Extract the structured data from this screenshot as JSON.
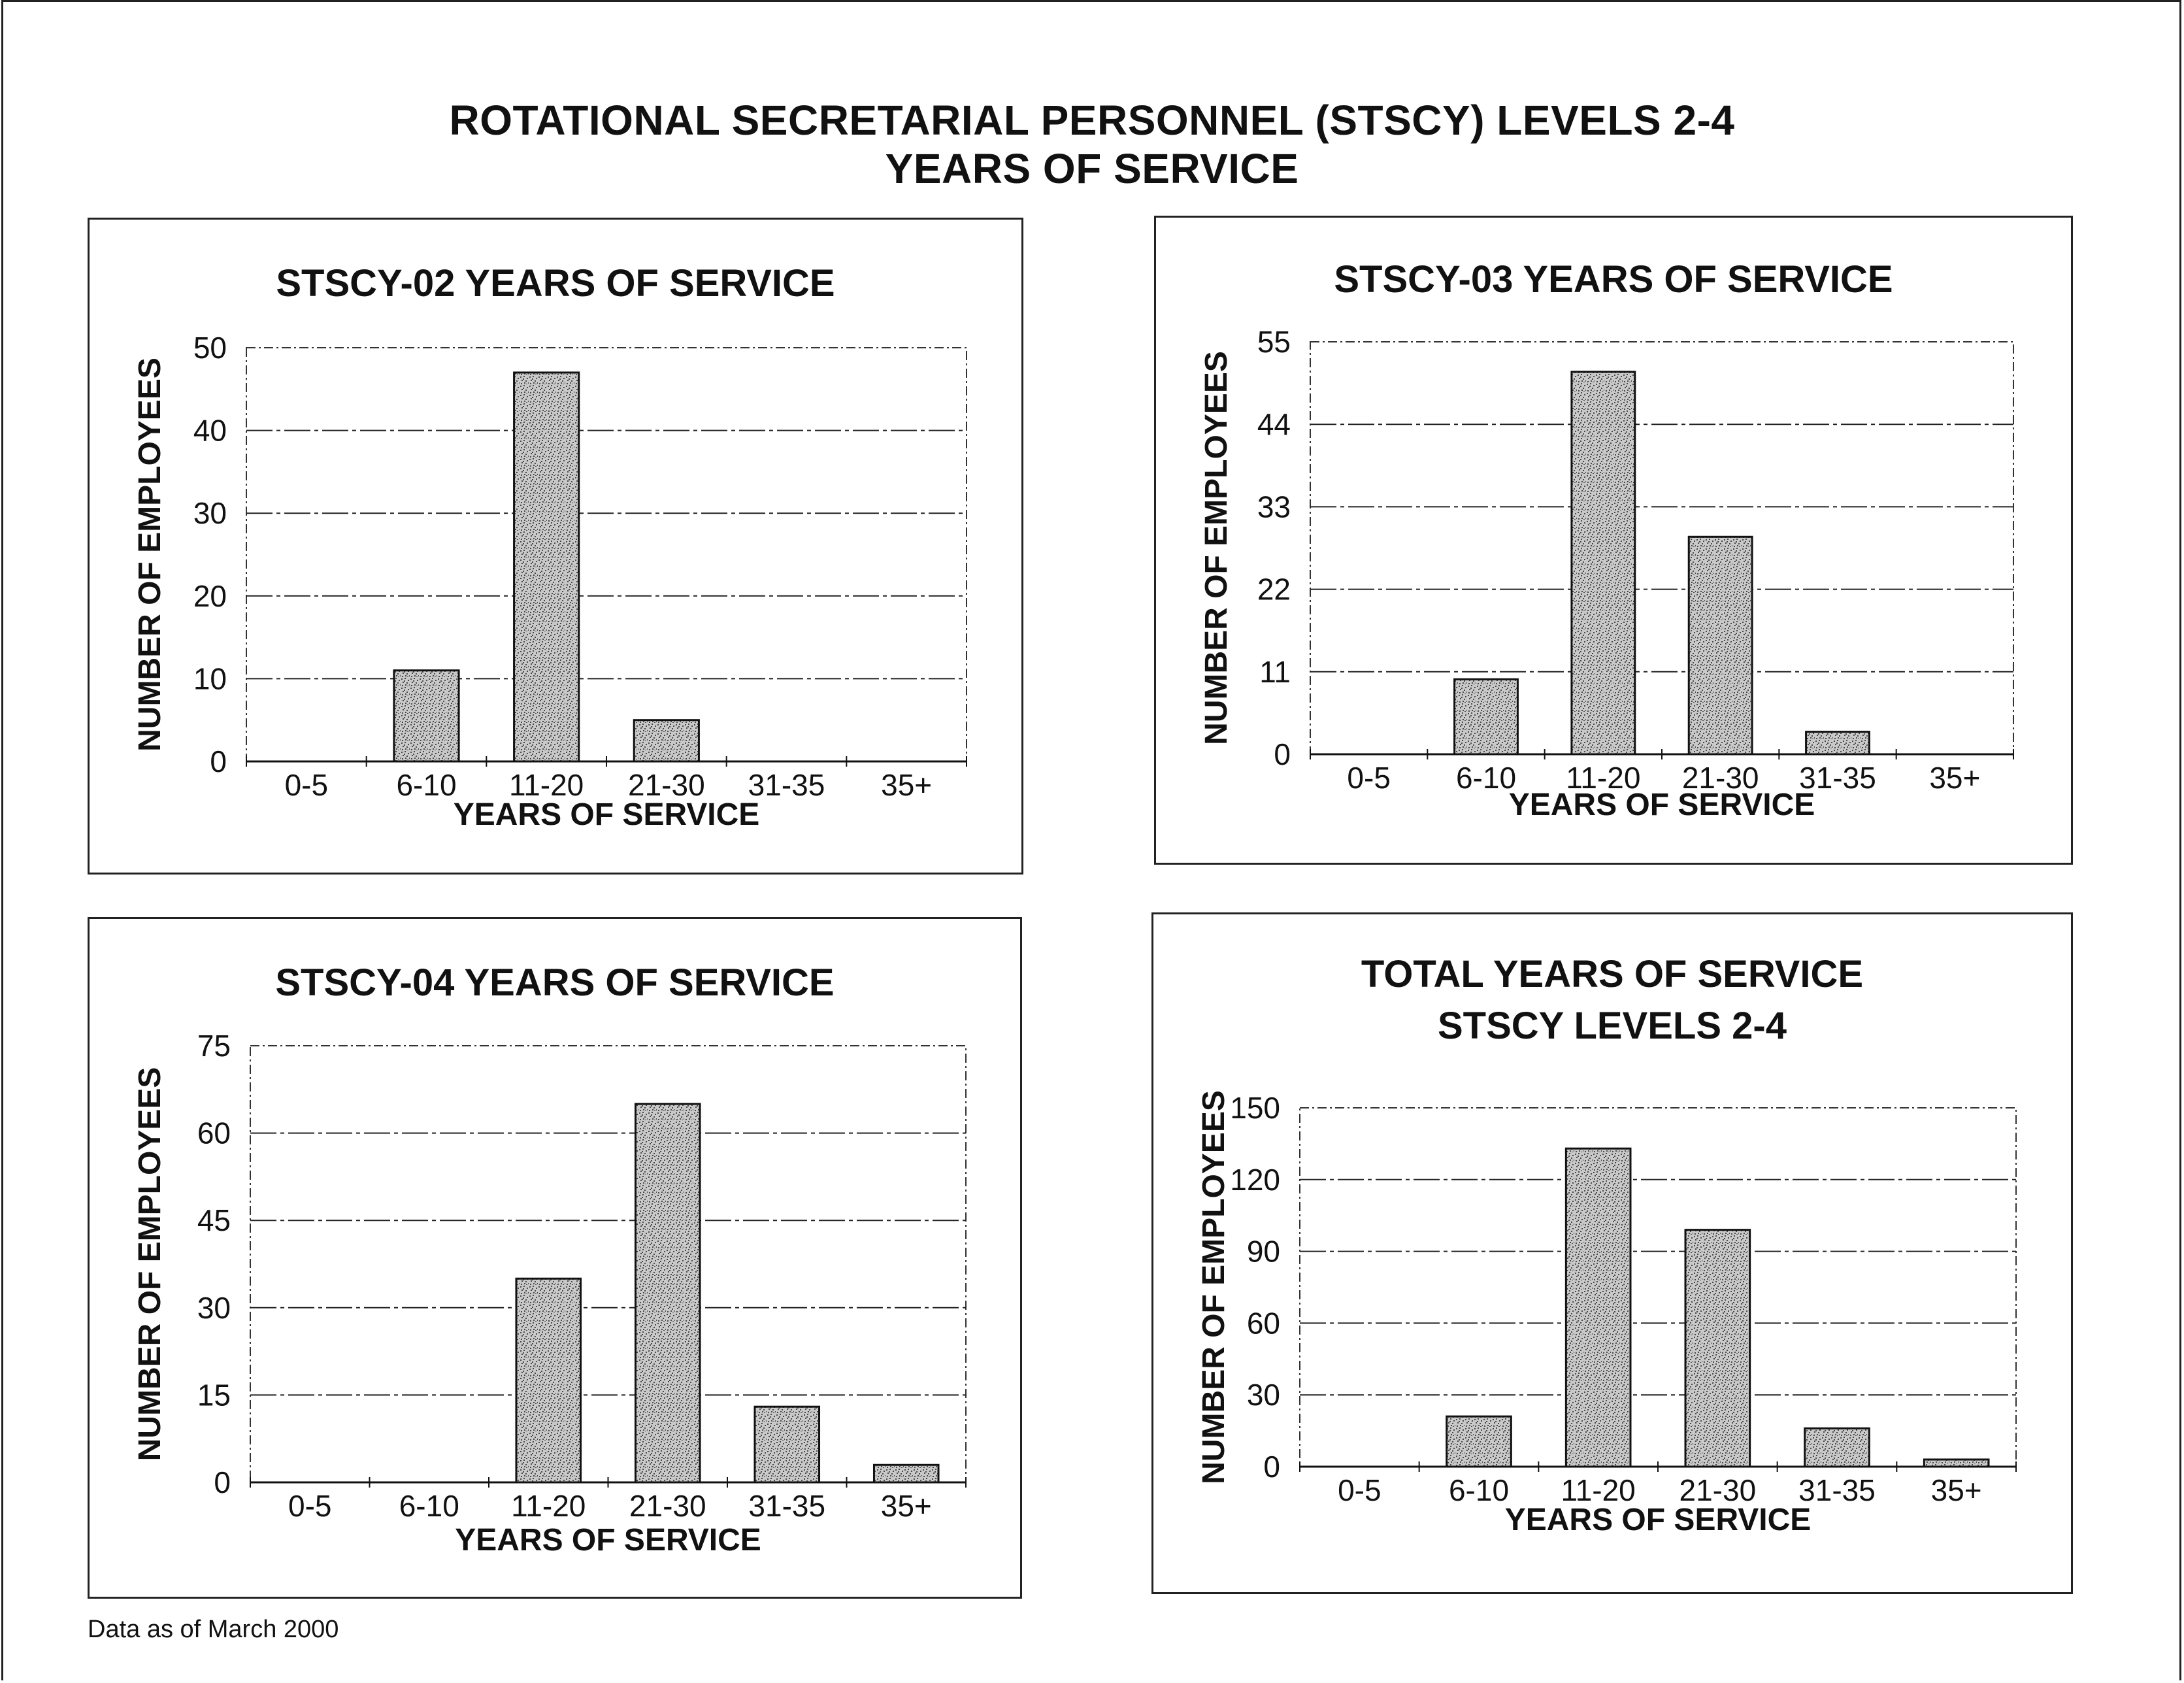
{
  "page": {
    "title_line1": "ROTATIONAL SECRETARIAL PERSONNEL (STSCY) LEVELS 2-4",
    "title_line2": "YEARS OF SERVICE",
    "footnote": "Data as of March 2000"
  },
  "chart_data": [
    {
      "type": "bar",
      "title": [
        "STSCY-02 YEARS OF SERVICE"
      ],
      "xlabel": "YEARS OF SERVICE",
      "ylabel": "NUMBER OF EMPLOYEES",
      "categories": [
        "0-5",
        "6-10",
        "11-20",
        "21-30",
        "31-35",
        "35+"
      ],
      "values": [
        0,
        11,
        47,
        5,
        0,
        0
      ],
      "ylim": [
        0,
        50
      ],
      "yticks": [
        "0",
        "10",
        "20",
        "30",
        "40",
        "50"
      ],
      "grid": true
    },
    {
      "type": "bar",
      "title": [
        "STSCY-03 YEARS OF SERVICE"
      ],
      "xlabel": "YEARS OF SERVICE",
      "ylabel": "NUMBER OF EMPLOYEES",
      "categories": [
        "0-5",
        "6-10",
        "11-20",
        "21-30",
        "31-35",
        "35+"
      ],
      "values": [
        0,
        10,
        51,
        29,
        3,
        0
      ],
      "ylim": [
        0,
        55
      ],
      "yticks": [
        "0",
        "11",
        "22",
        "33",
        "44",
        "55"
      ],
      "grid": true
    },
    {
      "type": "bar",
      "title": [
        "STSCY-04 YEARS OF SERVICE"
      ],
      "xlabel": "YEARS OF SERVICE",
      "ylabel": "NUMBER OF EMPLOYEES",
      "categories": [
        "0-5",
        "6-10",
        "11-20",
        "21-30",
        "31-35",
        "35+"
      ],
      "values": [
        0,
        0,
        35,
        65,
        13,
        3
      ],
      "ylim": [
        0,
        75
      ],
      "yticks": [
        "0",
        "15",
        "30",
        "45",
        "60",
        "75"
      ],
      "grid": true
    },
    {
      "type": "bar",
      "title": [
        "TOTAL YEARS OF SERVICE",
        "STSCY LEVELS 2-4"
      ],
      "xlabel": "YEARS OF SERVICE",
      "ylabel": "NUMBER OF EMPLOYEES",
      "categories": [
        "0-5",
        "6-10",
        "11-20",
        "21-30",
        "31-35",
        "35+"
      ],
      "values": [
        0,
        21,
        133,
        99,
        16,
        3
      ],
      "ylim": [
        0,
        150
      ],
      "yticks": [
        "0",
        "30",
        "60",
        "90",
        "120",
        "150"
      ],
      "grid": true
    }
  ]
}
